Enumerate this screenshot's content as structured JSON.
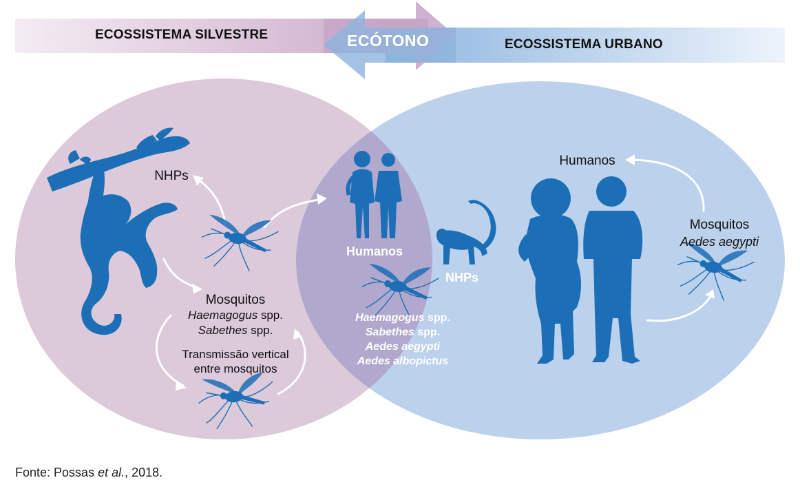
{
  "header": {
    "left_title": "ECOSSISTEMA SILVESTRE",
    "center_title": "ECÓTONO",
    "right_title": "ECOSSISTEMA URBANO"
  },
  "sylvatic": {
    "nhps": "NHPs",
    "mosquitos_title": "Mosquitos",
    "species_1": "Haemagogus",
    "species_1_suffix": " spp.",
    "species_2": "Sabethes",
    "species_2_suffix": " spp.",
    "transmission_line1": "Transmissão vertical",
    "transmission_line2": "entre mosquitos"
  },
  "ecotone": {
    "humans": "Humanos",
    "nhps": "NHPs",
    "species_1": "Haemagogus",
    "species_1_suffix": " spp.",
    "species_2": "Sabethes",
    "species_2_suffix": " spp.",
    "species_3": "Aedes aegypti",
    "species_4": "Aedes albopictus"
  },
  "urban": {
    "humans": "Humanos",
    "mosquitos_title": "Mosquitos",
    "species": "Aedes aegypti"
  },
  "source": {
    "prefix": "Fonte: Possas ",
    "italic": "et al.",
    "suffix": ", 2018."
  },
  "colors": {
    "sylvatic_fill": "#dcc9da",
    "urban_fill": "#bcd1ec",
    "overlap_fill": "#b6aed0",
    "silhouette": "#1c6fb7",
    "arrow_pink": "#c8a6c4",
    "arrow_blue": "#9dbfe3"
  }
}
